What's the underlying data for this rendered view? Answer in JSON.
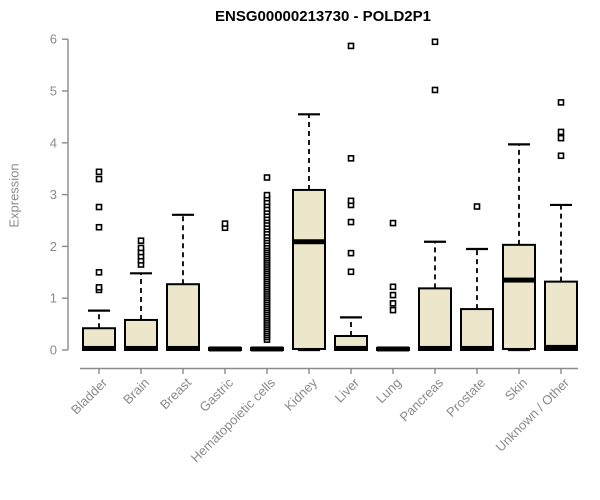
{
  "header": {
    "title": "ENSG00000213730 - POLD2P1"
  },
  "chart_data": {
    "type": "boxplot",
    "title": "ENSG00000213730 - POLD2P1",
    "xlabel": "",
    "ylabel": "Expression",
    "ylim": [
      0,
      6
    ],
    "yticks": [
      0,
      1,
      2,
      3,
      4,
      5,
      6
    ],
    "grid": false,
    "legend": "none",
    "colors": {
      "box_fill": "#ece7cb",
      "box_border": "#000000",
      "median": "#000000",
      "whisker": "#000000",
      "outlier": "#000000",
      "axis": "#8a8a8a",
      "tick_label": "#8a8a8a",
      "title": "#000000",
      "background": "#ffffff"
    },
    "categories": [
      "Bladder",
      "Brain",
      "Breast",
      "Gastric",
      "Hematopoietic cells",
      "Kidney",
      "Liver",
      "Lung",
      "Pancreas",
      "Prostate",
      "Skin",
      "Unknown / Other"
    ],
    "series": [
      {
        "name": "Bladder",
        "q1": 0,
        "median": 0.03,
        "q3": 0.42,
        "whisker_low": 0,
        "whisker_high": 0.76,
        "outliers": [
          1.16,
          1.21,
          1.5,
          2.37,
          2.76,
          3.3,
          3.44
        ]
      },
      {
        "name": "Brain",
        "q1": 0,
        "median": 0.03,
        "q3": 0.58,
        "whisker_low": 0,
        "whisker_high": 1.48,
        "outliers": [
          1.65,
          1.73,
          1.81,
          1.89,
          1.97,
          2.11
        ]
      },
      {
        "name": "Breast",
        "q1": 0,
        "median": 0.03,
        "q3": 1.27,
        "whisker_low": 0,
        "whisker_high": 2.61,
        "outliers": []
      },
      {
        "name": "Gastric",
        "q1": 0,
        "median": 0.02,
        "q3": 0.04,
        "whisker_low": 0,
        "whisker_high": 0.04,
        "outliers": [
          2.36,
          2.44
        ]
      },
      {
        "name": "Hematopoietic cells",
        "q1": 0,
        "median": 0.02,
        "q3": 0.04,
        "whisker_low": 0,
        "whisker_high": 0.04,
        "outliers": [
          0.2,
          0.25,
          0.29,
          0.33,
          0.37,
          0.41,
          0.45,
          0.49,
          0.53,
          0.57,
          0.61,
          0.65,
          0.69,
          0.73,
          0.77,
          0.81,
          0.85,
          0.89,
          0.93,
          0.97,
          1.01,
          1.05,
          1.09,
          1.13,
          1.17,
          1.21,
          1.25,
          1.29,
          1.33,
          1.37,
          1.41,
          1.45,
          1.49,
          1.53,
          1.57,
          1.61,
          1.65,
          1.69,
          1.73,
          1.77,
          1.81,
          1.85,
          1.89,
          1.93,
          1.97,
          2.01,
          2.06,
          2.11,
          2.16,
          2.21,
          2.27,
          2.33,
          2.38,
          2.44,
          2.5,
          2.55,
          2.61,
          2.67,
          2.73,
          2.8,
          2.86,
          2.93,
          2.99,
          3.33
        ]
      },
      {
        "name": "Kidney",
        "q1": 0.02,
        "median": 2.09,
        "q3": 3.09,
        "whisker_low": 0,
        "whisker_high": 4.55,
        "outliers": []
      },
      {
        "name": "Liver",
        "q1": 0,
        "median": 0.03,
        "q3": 0.27,
        "whisker_low": 0,
        "whisker_high": 0.63,
        "outliers": [
          1.51,
          1.87,
          2.47,
          2.8,
          2.88,
          3.7,
          5.87
        ]
      },
      {
        "name": "Lung",
        "q1": 0,
        "median": 0.02,
        "q3": 0.04,
        "whisker_low": 0,
        "whisker_high": 0.04,
        "outliers": [
          0.77,
          0.9,
          1.06,
          1.22,
          2.45
        ]
      },
      {
        "name": "Pancreas",
        "q1": 0,
        "median": 0.03,
        "q3": 1.19,
        "whisker_low": 0,
        "whisker_high": 2.09,
        "outliers": [
          5.02,
          5.95
        ]
      },
      {
        "name": "Prostate",
        "q1": 0,
        "median": 0.03,
        "q3": 0.79,
        "whisker_low": 0,
        "whisker_high": 1.95,
        "outliers": [
          2.77
        ]
      },
      {
        "name": "Skin",
        "q1": 0.02,
        "median": 1.35,
        "q3": 2.03,
        "whisker_low": 0,
        "whisker_high": 3.97,
        "outliers": []
      },
      {
        "name": "Unknown / Other",
        "q1": 0,
        "median": 0.05,
        "q3": 1.32,
        "whisker_low": 0,
        "whisker_high": 2.8,
        "outliers": [
          3.75,
          4.09,
          4.21,
          4.78
        ]
      }
    ]
  }
}
